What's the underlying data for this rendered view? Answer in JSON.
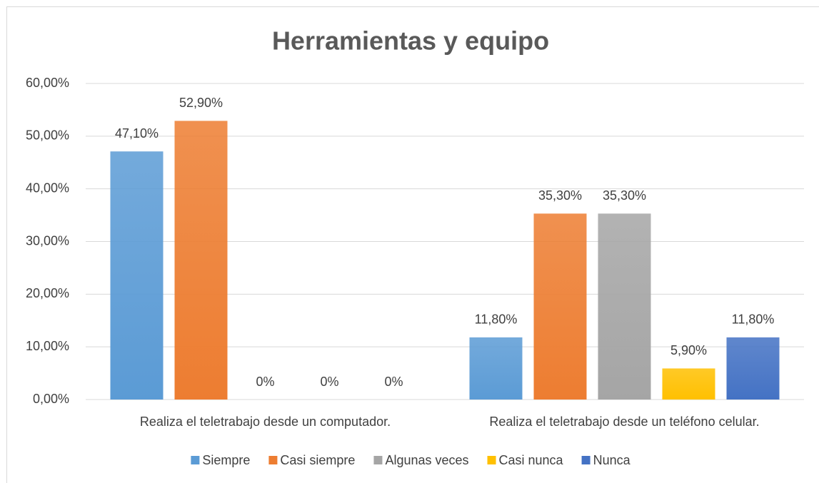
{
  "chart_data": {
    "type": "bar",
    "title": "Herramientas y equipo",
    "categories": [
      "Realiza el teletrabajo desde un computador.",
      "Realiza el teletrabajo desde un teléfono celular."
    ],
    "series": [
      {
        "name": "Siempre",
        "color": "#5b9bd5",
        "values": [
          47.1,
          11.8
        ],
        "value_labels": [
          "47,10%",
          "11,80%"
        ]
      },
      {
        "name": "Casi siempre",
        "color": "#ed7d31",
        "values": [
          52.9,
          35.3
        ],
        "value_labels": [
          "52,90%",
          "35,30%"
        ]
      },
      {
        "name": "Algunas veces",
        "color": "#a5a5a5",
        "values": [
          0,
          35.3
        ],
        "value_labels": [
          "0%",
          "35,30%"
        ]
      },
      {
        "name": "Casi nunca",
        "color": "#ffc000",
        "values": [
          0,
          5.9
        ],
        "value_labels": [
          "0%",
          "5,90%"
        ]
      },
      {
        "name": "Nunca",
        "color": "#4472c4",
        "values": [
          0,
          11.8
        ],
        "value_labels": [
          "0%",
          "11,80%"
        ]
      }
    ],
    "ylim": [
      0,
      60
    ],
    "yticks": [
      {
        "value": 0,
        "label": "0,00%"
      },
      {
        "value": 10,
        "label": "10,00%"
      },
      {
        "value": 20,
        "label": "20,00%"
      },
      {
        "value": 30,
        "label": "30,00%"
      },
      {
        "value": 40,
        "label": "40,00%"
      },
      {
        "value": 50,
        "label": "50,00%"
      },
      {
        "value": 60,
        "label": "60,00%"
      }
    ],
    "grid": true,
    "legend": "bottom"
  }
}
